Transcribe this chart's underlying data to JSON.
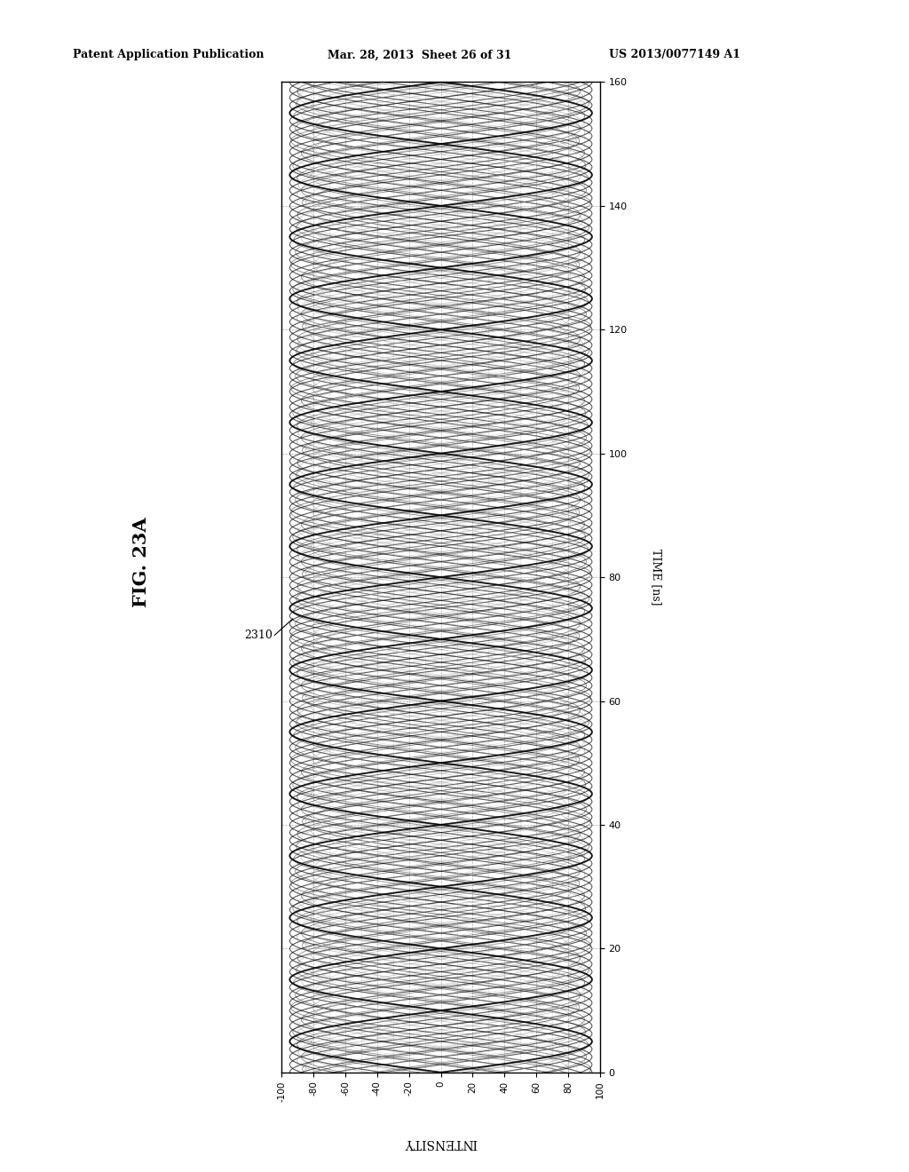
{
  "title": "FIG. 23A",
  "label_ref": "2310",
  "x_label": "INTENSITY",
  "y_label": "TIME [ns]",
  "x_lim": [
    -100,
    100
  ],
  "y_lim": [
    0,
    160
  ],
  "x_ticks": [
    100,
    80,
    60,
    40,
    20,
    0,
    -20,
    -40,
    -60,
    -80,
    -100
  ],
  "y_ticks": [
    0,
    20,
    40,
    60,
    80,
    100,
    120,
    140,
    160
  ],
  "header_left": "Patent Application Publication",
  "header_mid": "Mar. 28, 2013  Sheet 26 of 31",
  "header_right": "US 2013/0077149 A1",
  "bg_color": "#ffffff",
  "period_ns": 20,
  "amplitude": 95
}
